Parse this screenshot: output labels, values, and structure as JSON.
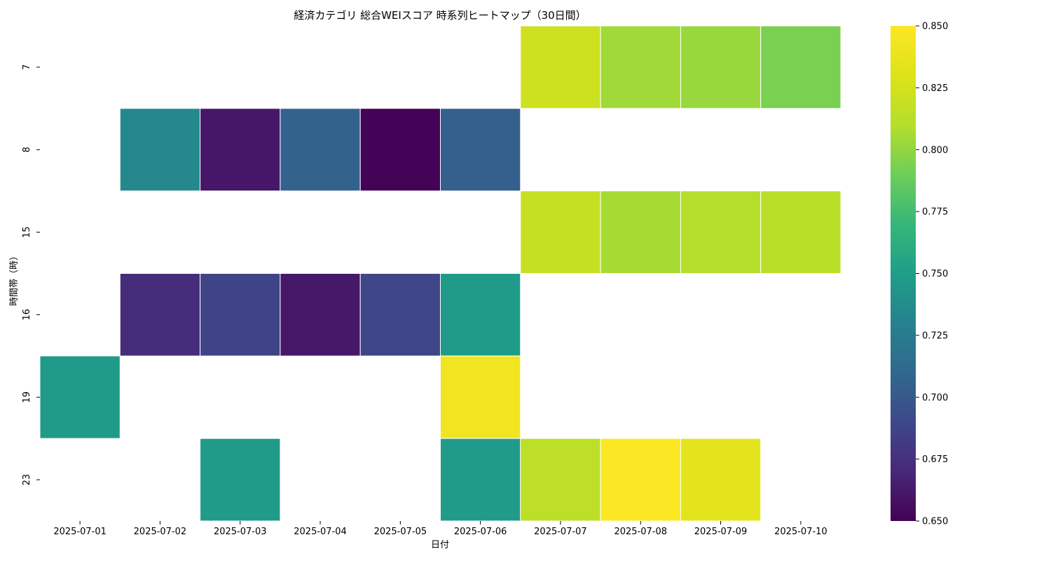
{
  "chart_data": {
    "type": "heatmap",
    "title": "経済カテゴリ 総合WEIスコア 時系列ヒートマップ（30日間）",
    "xlabel": "日付",
    "ylabel": "時間帯（時）",
    "x_categories": [
      "2025-07-01",
      "2025-07-02",
      "2025-07-03",
      "2025-07-04",
      "2025-07-05",
      "2025-07-06",
      "2025-07-07",
      "2025-07-08",
      "2025-07-09",
      "2025-07-10"
    ],
    "y_categories": [
      "7",
      "8",
      "15",
      "16",
      "19",
      "23"
    ],
    "values": [
      [
        null,
        null,
        null,
        null,
        null,
        null,
        0.822,
        0.804,
        0.802,
        0.793
      ],
      [
        null,
        0.734,
        0.661,
        0.707,
        0.651,
        0.704,
        null,
        null,
        null,
        null
      ],
      [
        null,
        null,
        null,
        null,
        null,
        null,
        0.818,
        0.806,
        0.81,
        0.812
      ],
      [
        null,
        0.673,
        0.687,
        0.662,
        0.688,
        0.748,
        null,
        null,
        null,
        null
      ],
      [
        0.748,
        null,
        null,
        null,
        null,
        0.842,
        null,
        null,
        null,
        null
      ],
      [
        null,
        null,
        0.748,
        null,
        null,
        0.748,
        0.814,
        0.849,
        0.834,
        null
      ]
    ],
    "colorscale": "viridis",
    "vmin": 0.65,
    "vmax": 0.85,
    "colorbar_ticks": [
      "0.650",
      "0.675",
      "0.700",
      "0.725",
      "0.750",
      "0.775",
      "0.800",
      "0.825",
      "0.850"
    ],
    "grid": false,
    "legend": "colorbar-right"
  }
}
